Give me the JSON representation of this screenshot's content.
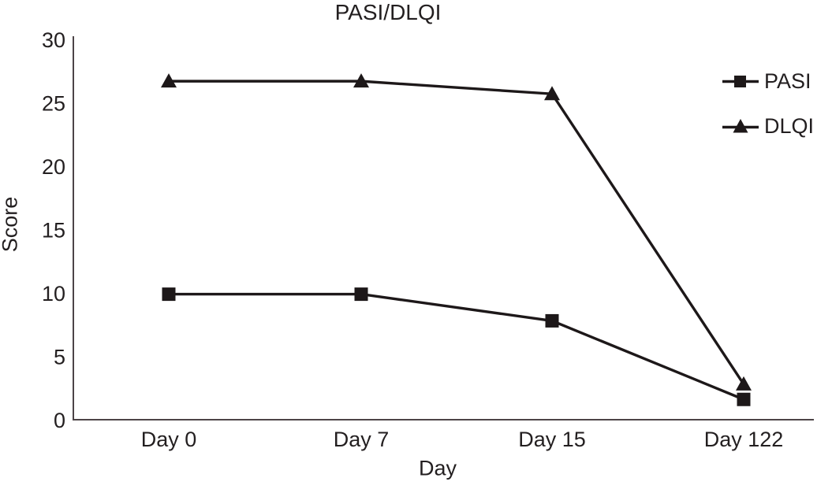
{
  "chart_data": {
    "type": "line",
    "title": "PASI/DLQI",
    "xlabel": "Day",
    "ylabel": "Score",
    "categories": [
      "Day 0",
      "Day 7",
      "Day 15",
      "Day 122"
    ],
    "series": [
      {
        "name": "PASI",
        "marker": "square",
        "values": [
          9.9,
          9.9,
          7.8,
          1.6
        ]
      },
      {
        "name": "DLQI",
        "marker": "triangle",
        "values": [
          26.7,
          26.7,
          25.7,
          2.8
        ]
      }
    ],
    "ylim": [
      0,
      30
    ],
    "yticks": [
      0,
      5,
      10,
      15,
      20,
      25,
      30
    ],
    "grid": false,
    "legend_position": "top-right",
    "colors": {
      "line": "#1d1819",
      "marker": "#1d1819",
      "axis": "#4c4447",
      "text": "#231f20",
      "background": "#ffffff"
    }
  }
}
